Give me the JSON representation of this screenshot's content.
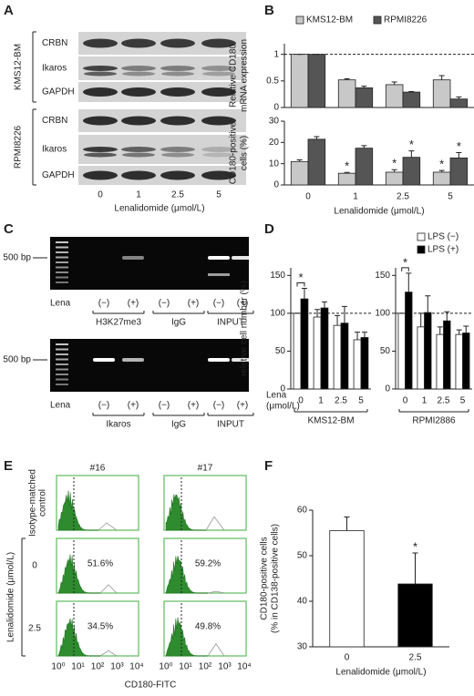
{
  "panel_labels": [
    "A",
    "B",
    "C",
    "D",
    "E",
    "F"
  ],
  "blot": {
    "groups": [
      {
        "name": "KMS12-BM",
        "rows": [
          "CRBN",
          "Ikaros",
          "GAPDH"
        ]
      },
      {
        "name": "RPMI8226",
        "rows": [
          "CRBN",
          "Ikaros",
          "GAPDH"
        ]
      }
    ],
    "lanes": [
      "0",
      "1",
      "2.5",
      "5"
    ],
    "xlabel": "Lenalidomide (μmol/L)"
  },
  "gels": [
    {
      "ladder_label": "500 bp",
      "lena_label": "Lena",
      "lanes": [
        "(−)",
        "(+)",
        "(−)",
        "(+)",
        "(−)",
        "(+)"
      ],
      "groups": [
        "H3K27me3",
        "IgG",
        "INPUT"
      ]
    },
    {
      "ladder_label": "500 bp",
      "lena_label": "Lena",
      "lanes": [
        "(−)",
        "(+)",
        "(−)",
        "(+)",
        "(−)",
        "(+)"
      ],
      "groups": [
        "Ikaros",
        "IgG",
        "INPUT"
      ]
    }
  ],
  "flow": {
    "columns": [
      "#16",
      "#17"
    ],
    "control_label": [
      "Isotype-matched",
      "control"
    ],
    "dose_group": "Lenalidomide (μmol/L)",
    "rows": [
      {
        "dose": "0",
        "values": [
          "51.6%",
          "59.2%"
        ]
      },
      {
        "dose": "2.5",
        "values": [
          "34.5%",
          "49.8%"
        ]
      }
    ],
    "xticks": [
      "10⁰",
      "10¹",
      "10²",
      "10³",
      "10⁴"
    ],
    "xlabel": "CD180-FITC"
  },
  "chart_data": [
    {
      "type": "bar",
      "ylabel": [
        "Relative CD180",
        "mRNA expression"
      ],
      "ylim": [
        0,
        1.2
      ],
      "yticks": [
        0,
        0.5,
        1
      ],
      "reference_line": 1,
      "legend": "top",
      "series": [
        {
          "name": "KMS12-BM",
          "color": "#c8c8c8",
          "values": [
            1,
            0.52,
            0.43,
            0.52
          ],
          "errors": [
            0,
            0.02,
            0.05,
            0.08
          ]
        },
        {
          "name": "RPMI8226",
          "color": "#555555",
          "values": [
            1,
            0.37,
            0.29,
            0.16
          ],
          "errors": [
            0,
            0.03,
            0.01,
            0.04
          ]
        }
      ]
    },
    {
      "type": "bar",
      "ylabel": [
        "CD180-positive",
        "cells (%)"
      ],
      "ylim": [
        0,
        30
      ],
      "yticks": [
        0,
        10,
        20,
        30
      ],
      "categories": [
        "0",
        "1",
        "2.5",
        "5"
      ],
      "xlabel": "Lenalidomide (μmol/L)",
      "series": [
        {
          "color": "#c8c8c8",
          "values": [
            11,
            5.5,
            6,
            6
          ],
          "errors": [
            0.8,
            0.4,
            1.2,
            0.8
          ],
          "markers": [
            null,
            "*",
            "*",
            "*"
          ]
        },
        {
          "color": "#555555",
          "values": [
            21.5,
            17.3,
            13,
            12.7
          ],
          "errors": [
            1.2,
            1.2,
            3,
            2.5
          ],
          "markers": [
            null,
            null,
            "*",
            "*"
          ]
        }
      ]
    },
    {
      "type": "bar",
      "ylabel": [
        "relative cell number (%)"
      ],
      "ylim": [
        0,
        160
      ],
      "yticks": [
        0,
        50,
        100,
        150
      ],
      "reference_line": 100,
      "categories": [
        "0",
        "1",
        "2.5",
        "5"
      ],
      "xlabel": [
        "Lena",
        "(μmol/L)"
      ],
      "group_label": "KMS12-BM",
      "series": [
        {
          "color": "#ffffff",
          "values": [
            100,
            95,
            84,
            65
          ],
          "errors": [
            0,
            10,
            13,
            10
          ]
        },
        {
          "color": "#000000",
          "values": [
            119,
            107,
            87,
            68
          ],
          "errors": [
            14,
            8,
            22,
            7
          ],
          "markers": [
            "*",
            null,
            null,
            null
          ]
        }
      ]
    },
    {
      "type": "bar",
      "ylim": [
        0,
        160
      ],
      "yticks": [
        0,
        50,
        100,
        150
      ],
      "reference_line": 100,
      "categories": [
        "0",
        "1",
        "2.5",
        "5"
      ],
      "group_label": "RPMI2886",
      "legend": "top-right",
      "series": [
        {
          "name": "LPS (−)",
          "color": "#ffffff",
          "values": [
            100,
            82,
            72,
            72
          ],
          "errors": [
            0,
            18,
            10,
            6
          ]
        },
        {
          "name": "LPS (+)",
          "color": "#000000",
          "values": [
            128,
            101,
            90,
            74
          ],
          "errors": [
            25,
            22,
            12,
            9
          ],
          "markers": [
            "*",
            null,
            null,
            null
          ]
        }
      ]
    },
    {
      "type": "bar",
      "ylabel": [
        "CD180-positive cells",
        "(% in CD138-positive cells)"
      ],
      "ylim": [
        30,
        60
      ],
      "yticks": [
        30,
        40,
        50,
        60
      ],
      "categories": [
        "0",
        "2.5"
      ],
      "xlabel": "Lenalidomide (μmol/L)",
      "series": [
        {
          "colors": [
            "#ffffff",
            "#000000"
          ],
          "values": [
            55.5,
            43.8
          ],
          "errors": [
            3,
            6.8
          ],
          "markers": [
            null,
            "*"
          ]
        }
      ]
    }
  ]
}
